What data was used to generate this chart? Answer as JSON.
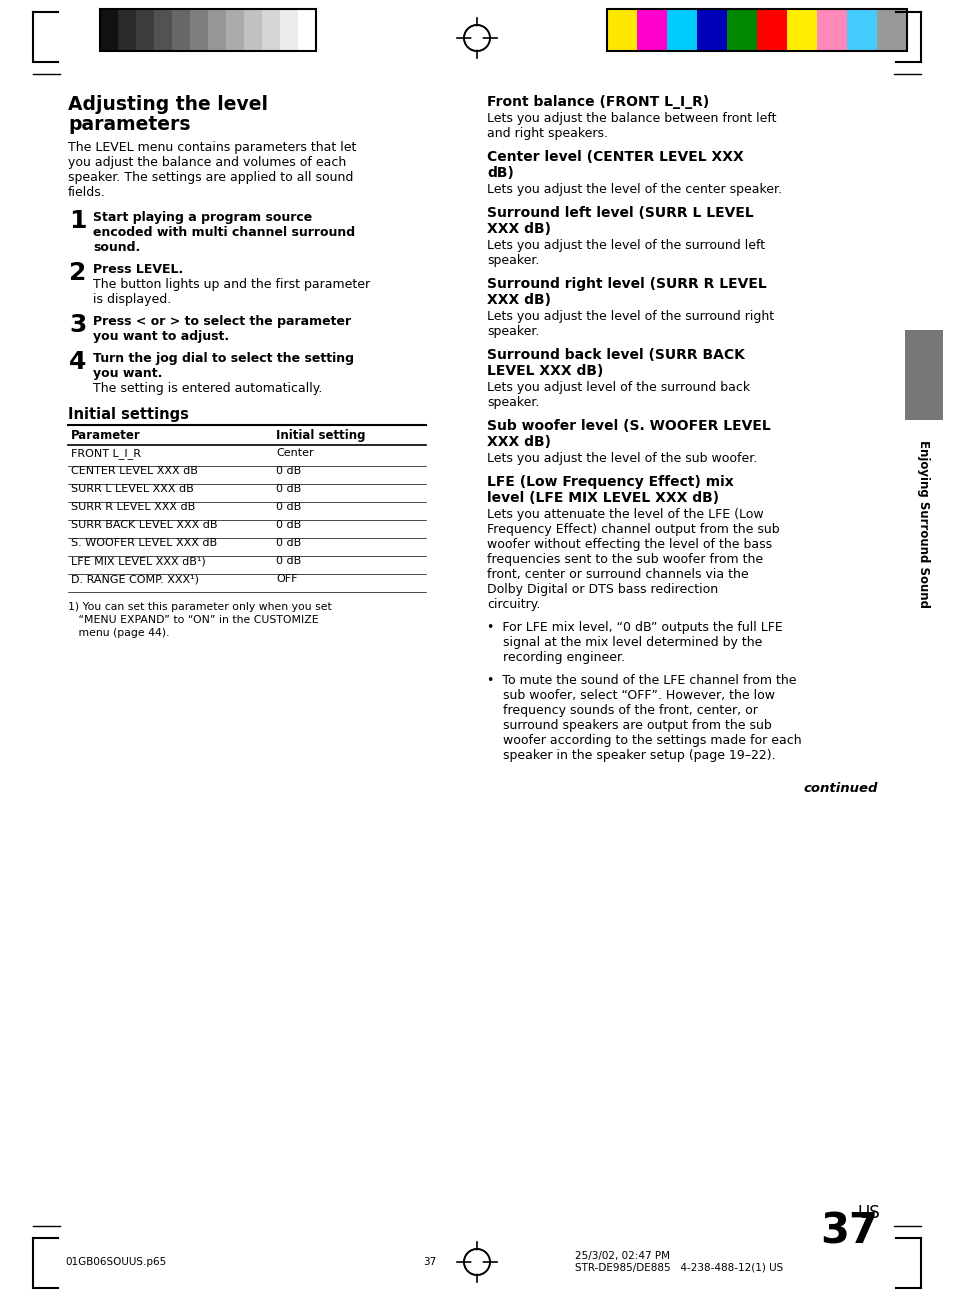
{
  "page_number": "37",
  "page_suffix": "US",
  "footer_left": "01GB06SOUUS.p65",
  "footer_center": "37",
  "footer_right_line1": "25/3/02, 02:47 PM",
  "footer_right_line2": "STR-DE985/DE885   4-238-488-12(1) US",
  "sidebar_text": "Enjoying Surround Sound",
  "bg_color": "#ffffff",
  "gray_colors": [
    "#111111",
    "#2a2a2a",
    "#3d3d3d",
    "#525252",
    "#686868",
    "#7e7e7e",
    "#969696",
    "#ababab",
    "#c1c1c1",
    "#d6d6d6",
    "#ebebeb",
    "#ffffff"
  ],
  "color_bar": [
    "#FFE800",
    "#FF00CC",
    "#00CCFF",
    "#0000BB",
    "#008800",
    "#FF0000",
    "#FFEE00",
    "#FF88BB",
    "#44CCFF",
    "#999999"
  ],
  "left_col": {
    "title_line1": "Adjusting the level",
    "title_line2": "parameters",
    "intro_lines": [
      "The LEVEL menu contains parameters that let",
      "you adjust the balance and volumes of each",
      "speaker. The settings are applied to all sound",
      "fields."
    ],
    "steps": [
      {
        "num": "1",
        "bold_lines": [
          "Start playing a program source",
          "encoded with multi channel surround",
          "sound."
        ],
        "normal_lines": []
      },
      {
        "num": "2",
        "bold_lines": [
          "Press LEVEL."
        ],
        "normal_lines": [
          "The button lights up and the first parameter",
          "is displayed."
        ]
      },
      {
        "num": "3",
        "bold_lines": [
          "Press < or > to select the parameter",
          "you want to adjust."
        ],
        "normal_lines": []
      },
      {
        "num": "4",
        "bold_lines": [
          "Turn the jog dial to select the setting",
          "you want."
        ],
        "normal_lines": [
          "The setting is entered automatically."
        ]
      }
    ],
    "table_section": "Initial settings",
    "table_headers": [
      "Parameter",
      "Initial setting"
    ],
    "table_rows": [
      [
        "FRONT L_I_R",
        "Center"
      ],
      [
        "CENTER LEVEL XXX dB",
        "0 dB"
      ],
      [
        "SURR L LEVEL XXX dB",
        "0 dB"
      ],
      [
        "SURR R LEVEL XXX dB",
        "0 dB"
      ],
      [
        "SURR BACK LEVEL XXX dB",
        "0 dB"
      ],
      [
        "S. WOOFER LEVEL XXX dB",
        "0 dB"
      ],
      [
        "LFE MIX LEVEL XXX dB¹)",
        "0 dB"
      ],
      [
        "D. RANGE COMP. XXX¹)",
        "OFF"
      ]
    ],
    "footnote_lines": [
      "1) You can set this parameter only when you set",
      "   “MENU EXPAND” to “ON” in the CUSTOMIZE",
      "   menu (page 44)."
    ]
  },
  "right_col": [
    {
      "heading_lines": [
        "Front balance (FRONT L_I_R)"
      ],
      "body_lines": [
        "Lets you adjust the balance between front left",
        "and right speakers."
      ]
    },
    {
      "heading_lines": [
        "Center level (CENTER LEVEL XXX",
        "dB)"
      ],
      "body_lines": [
        "Lets you adjust the level of the center speaker."
      ]
    },
    {
      "heading_lines": [
        "Surround left level (SURR L LEVEL",
        "XXX dB)"
      ],
      "body_lines": [
        "Lets you adjust the level of the surround left",
        "speaker."
      ]
    },
    {
      "heading_lines": [
        "Surround right level (SURR R LEVEL",
        "XXX dB)"
      ],
      "body_lines": [
        "Lets you adjust the level of the surround right",
        "speaker."
      ]
    },
    {
      "heading_lines": [
        "Surround back level (SURR BACK",
        "LEVEL XXX dB)"
      ],
      "body_lines": [
        "Lets you adjust level of the surround back",
        "speaker."
      ]
    },
    {
      "heading_lines": [
        "Sub woofer level (S. WOOFER LEVEL",
        "XXX dB)"
      ],
      "body_lines": [
        "Lets you adjust the level of the sub woofer."
      ]
    },
    {
      "heading_lines": [
        "LFE (Low Frequency Effect) mix",
        "level (LFE MIX LEVEL XXX dB)"
      ],
      "body_lines": [
        "Lets you attenuate the level of the LFE (Low",
        "Frequency Effect) channel output from the sub",
        "woofer without effecting the level of the bass",
        "frequencies sent to the sub woofer from the",
        "front, center or surround channels via the",
        "Dolby Digital or DTS bass redirection",
        "circuitry."
      ]
    },
    {
      "heading_lines": [],
      "body_lines": [
        "•  For LFE mix level, “0 dB” outputs the full LFE",
        "    signal at the mix level determined by the",
        "    recording engineer."
      ]
    },
    {
      "heading_lines": [],
      "body_lines": [
        "•  To mute the sound of the LFE channel from the",
        "    sub woofer, select “OFF”. However, the low",
        "    frequency sounds of the front, center, or",
        "    surround speakers are output from the sub",
        "    woofer according to the settings made for each",
        "    speaker in the speaker setup (page 19–22)."
      ]
    }
  ]
}
